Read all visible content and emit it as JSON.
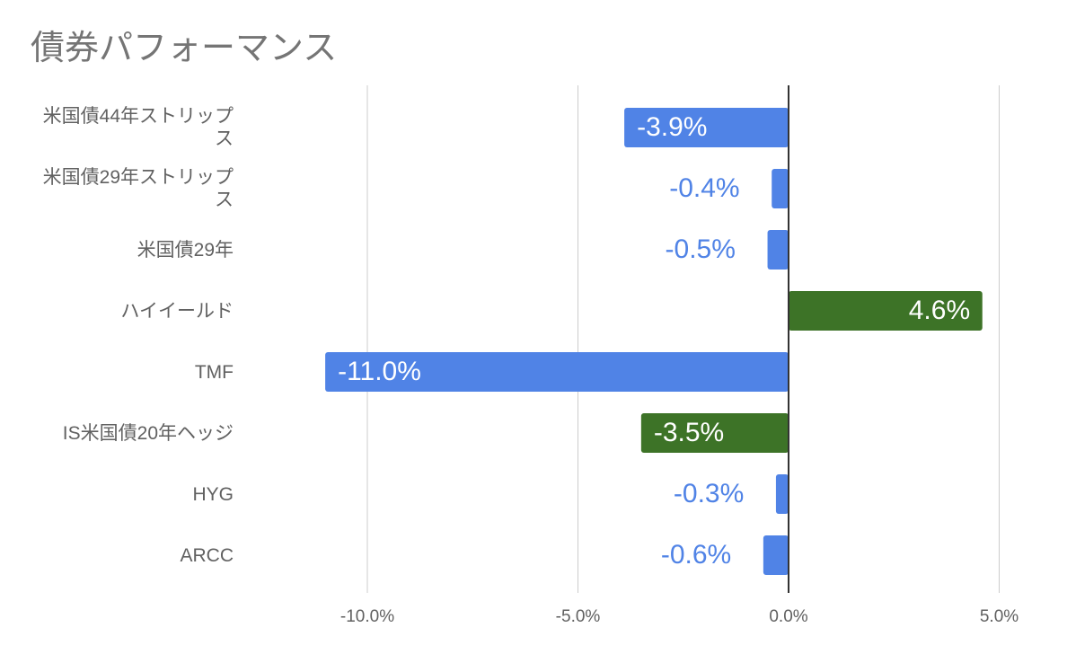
{
  "chart_data": {
    "type": "bar",
    "orientation": "horizontal",
    "title": "債券パフォーマンス",
    "categories": [
      "米国債44年ストリップス",
      "米国債29年ストリップス",
      "米国債29年",
      "ハイイールド",
      "TMF",
      "IS米国債20年ヘッジ",
      "HYG",
      "ARCC"
    ],
    "values": [
      -3.9,
      -0.4,
      -0.5,
      4.6,
      -11.0,
      -3.5,
      -0.3,
      -0.6
    ],
    "data_labels": [
      "-3.9%",
      "-0.4%",
      "-0.5%",
      "4.6%",
      "-11.0%",
      "-3.5%",
      "-0.3%",
      "-0.6%"
    ],
    "bar_colors": [
      "#5083e6",
      "#5083e6",
      "#5083e6",
      "#3d7327",
      "#5083e6",
      "#3d7327",
      "#5083e6",
      "#5083e6"
    ],
    "xlim": [
      -10,
      5
    ],
    "xticks": [
      -10,
      -5,
      0,
      5
    ],
    "xtick_labels": [
      "-10.0%",
      "-5.0%",
      "0.0%",
      "5.0%"
    ],
    "xlabel": "",
    "ylabel": "",
    "grid": true,
    "legend": "none"
  }
}
